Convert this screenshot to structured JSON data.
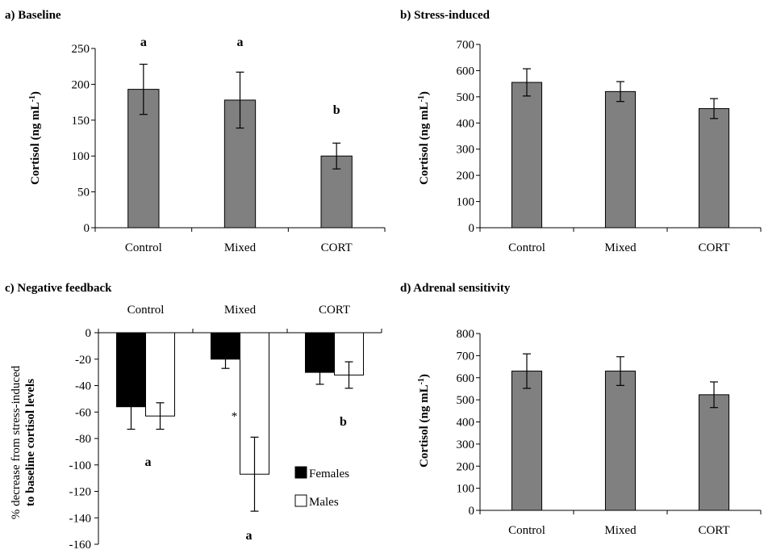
{
  "chart_data": [
    {
      "id": "a",
      "type": "bar",
      "title": "a) Baseline",
      "ylabel": "Cortisol (ng mL",
      "ylabel_sup": "-1",
      "ylabel_close": ")",
      "categories": [
        "Control",
        "Mixed",
        "CORT"
      ],
      "values": [
        193,
        178,
        100
      ],
      "errors": [
        35,
        39,
        18
      ],
      "sig_labels": [
        "a",
        "a",
        "b"
      ],
      "ylim": [
        0,
        250
      ],
      "yticks": [
        0,
        50,
        100,
        150,
        200,
        250
      ],
      "bar_color": "#808080"
    },
    {
      "id": "b",
      "type": "bar",
      "title": "b) Stress-induced",
      "ylabel": "Cortisol (ng mL",
      "ylabel_sup": "-1",
      "ylabel_close": ")",
      "categories": [
        "Control",
        "Mixed",
        "CORT"
      ],
      "values": [
        555,
        520,
        455
      ],
      "errors": [
        52,
        38,
        38
      ],
      "ylim": [
        0,
        700
      ],
      "yticks": [
        0,
        100,
        200,
        300,
        400,
        500,
        600,
        700
      ],
      "bar_color": "#808080"
    },
    {
      "id": "c",
      "type": "bar",
      "title": "c) Negative feedback",
      "ylabel_line1": "% decrease from stress-induced",
      "ylabel_line2": "to baseline cortisol levels",
      "categories": [
        "Control",
        "Mixed",
        "CORT"
      ],
      "series": [
        {
          "name": "Females",
          "values": [
            -56,
            -20,
            -30
          ],
          "errors": [
            17,
            7,
            9
          ],
          "color": "#000000"
        },
        {
          "name": "Males",
          "values": [
            -63,
            -107,
            -32
          ],
          "errors": [
            10,
            28,
            10
          ],
          "color": "#ffffff"
        }
      ],
      "annotations": {
        "control_sig": "a",
        "mixed_star": "*",
        "mixed_sig": "a",
        "cort_sig": "b"
      },
      "ylim": [
        -160,
        0
      ],
      "yticks": [
        0,
        -20,
        -40,
        -60,
        -80,
        -100,
        -120,
        -140,
        -160
      ],
      "legend": "center-right"
    },
    {
      "id": "d",
      "type": "bar",
      "title": "d) Adrenal sensitivity",
      "ylabel": "Cortisol (ng mL",
      "ylabel_sup": "-1",
      "ylabel_close": ")",
      "categories": [
        "Control",
        "Mixed",
        "CORT"
      ],
      "values": [
        630,
        630,
        523
      ],
      "errors": [
        78,
        65,
        58
      ],
      "ylim": [
        0,
        800
      ],
      "yticks": [
        0,
        100,
        200,
        300,
        400,
        500,
        600,
        700,
        800
      ],
      "bar_color": "#808080"
    }
  ]
}
